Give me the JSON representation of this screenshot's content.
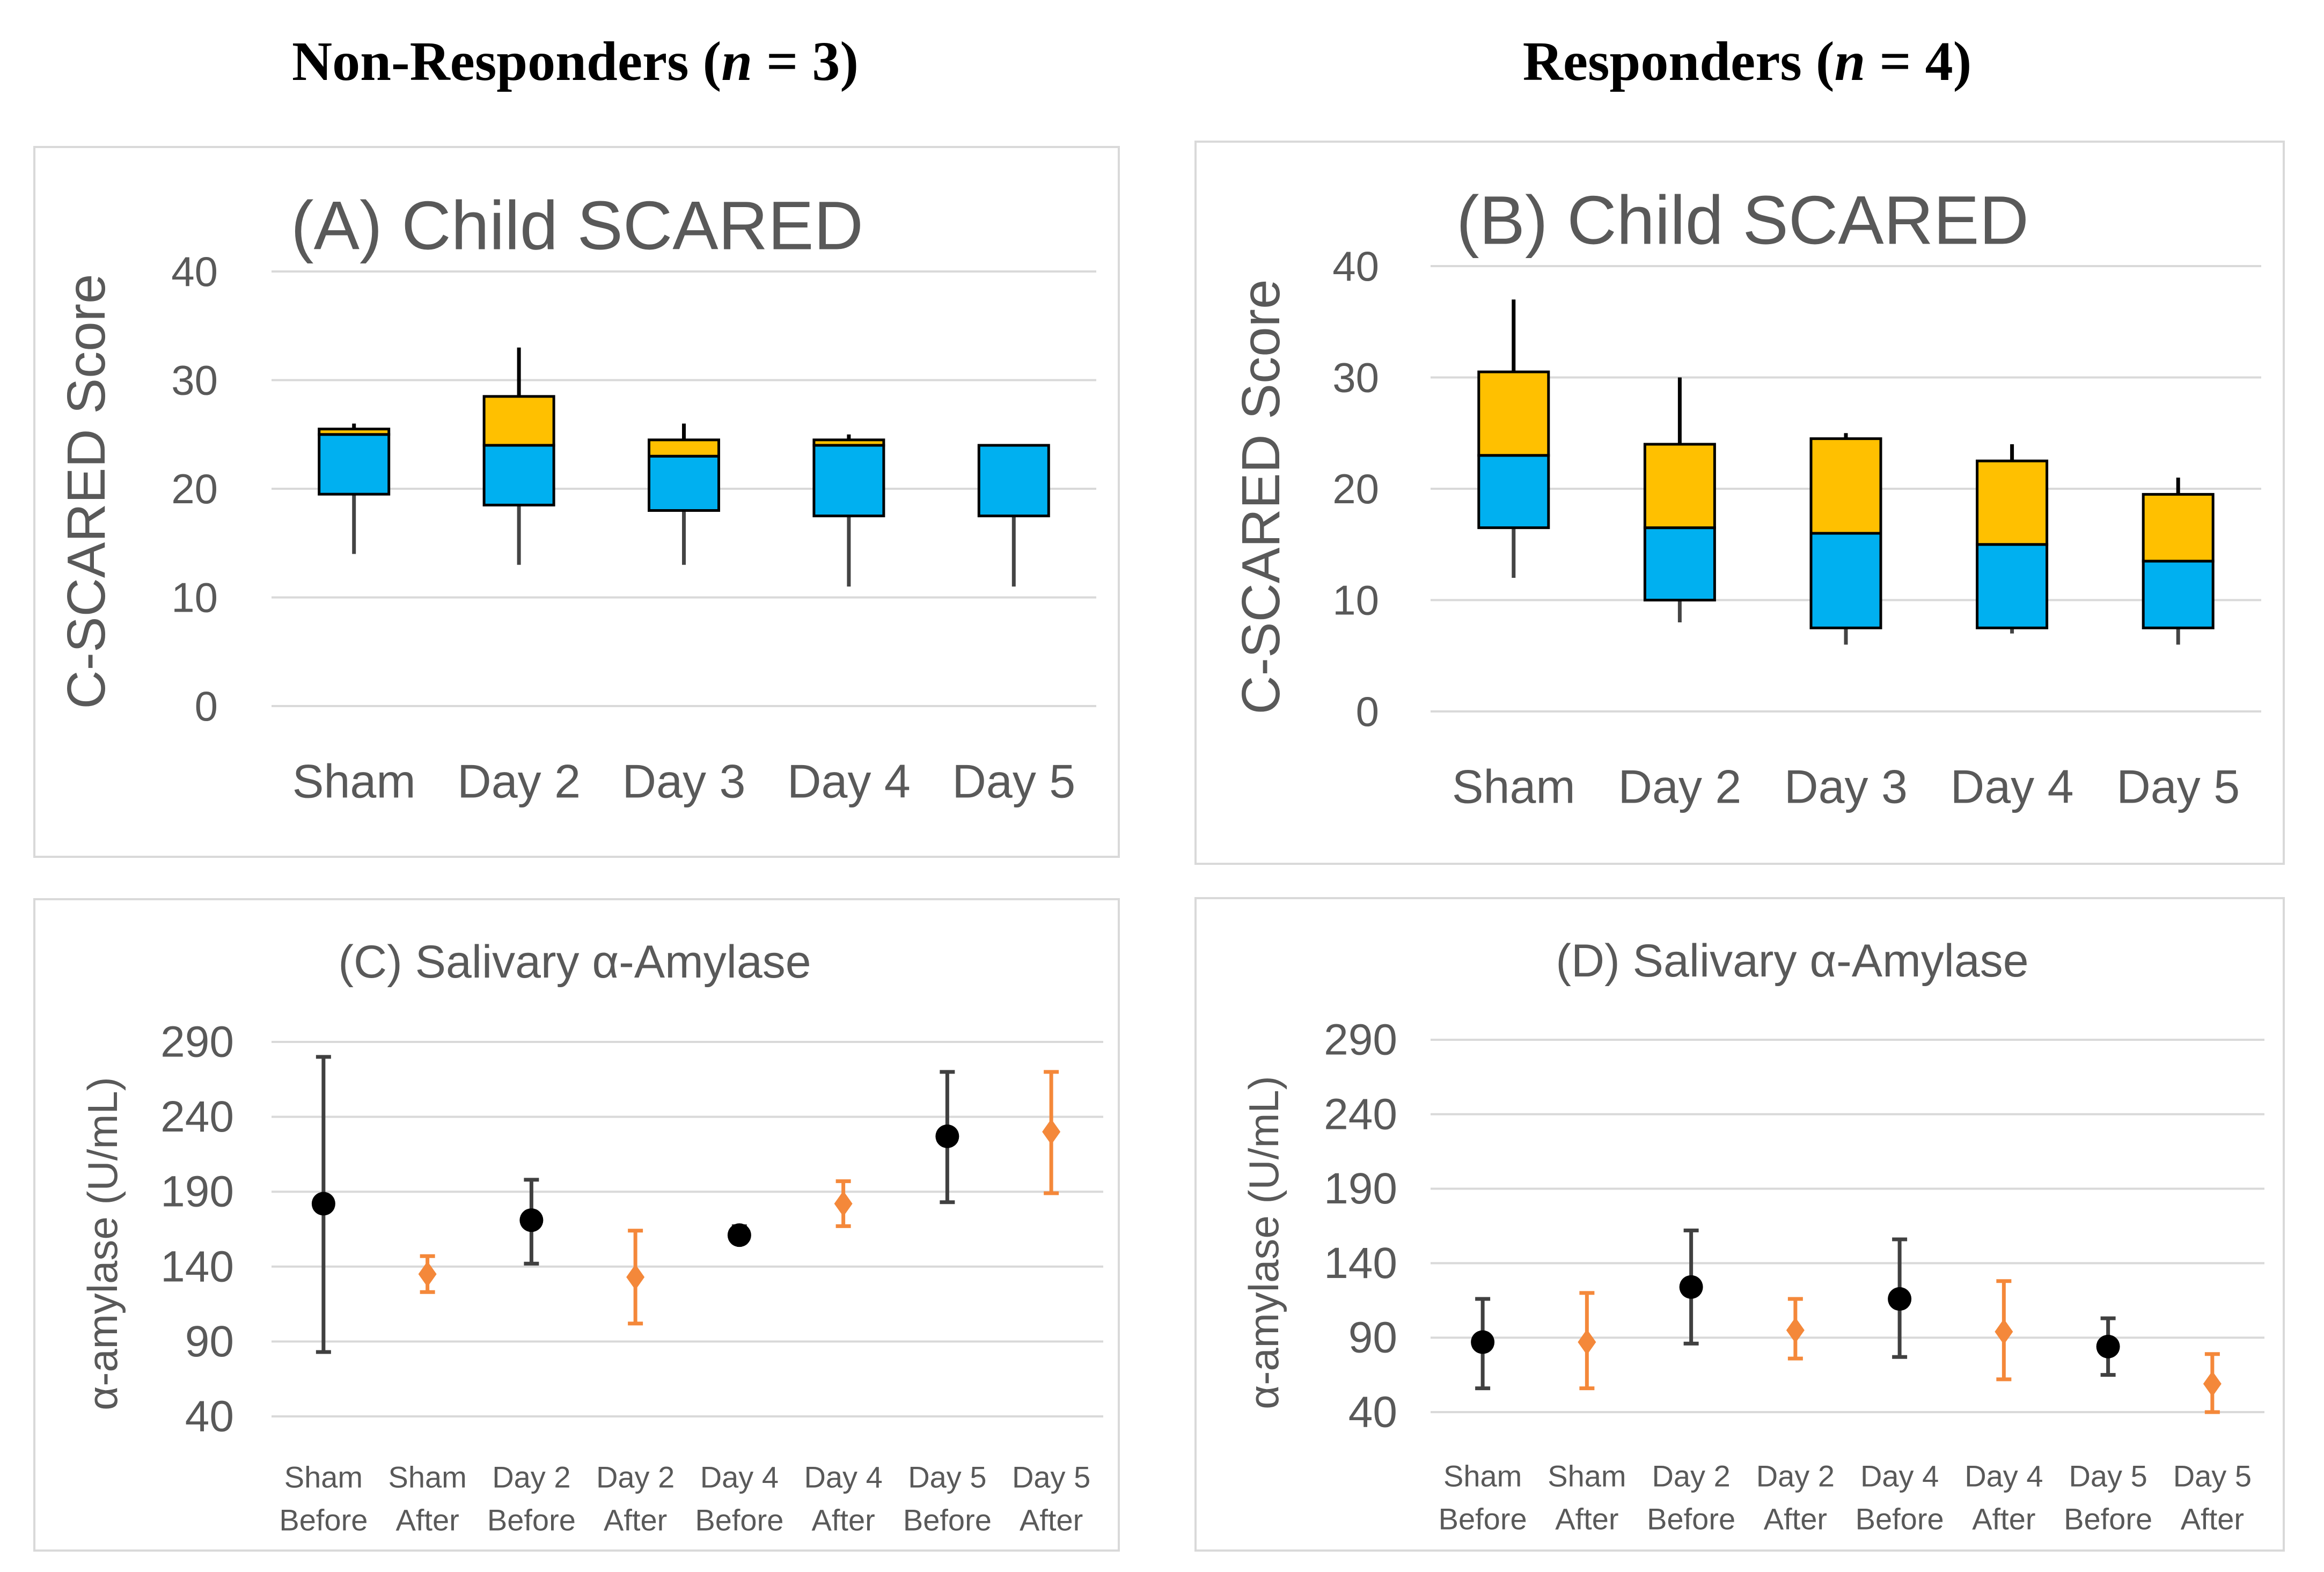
{
  "headings": {
    "left": {
      "text": "Non-Responders (",
      "n": "n",
      "rest": " = 3)"
    },
    "right": {
      "text": "Responders (",
      "n": "n",
      "rest": " = 4)"
    }
  },
  "colors": {
    "blue": "#00B0F0",
    "orange": "#FFC000",
    "black": "#000000",
    "orange_marker": "#F4883A",
    "grid": "#D9D9D9",
    "axis_text": "#595959"
  },
  "chart_data": [
    {
      "id": "A",
      "type": "box",
      "title": "(A) Child SCARED",
      "ylabel": "C-SCARED Score",
      "ylim": [
        0,
        40
      ],
      "yticks": [
        0,
        10,
        20,
        30,
        40
      ],
      "categories": [
        "Sham",
        "Day 2",
        "Day 3",
        "Day 4",
        "Day 5"
      ],
      "boxes": [
        {
          "min": 14,
          "q1": 19.5,
          "median": 25,
          "q3": 25.5,
          "max": 26
        },
        {
          "min": 13,
          "q1": 18.5,
          "median": 24,
          "q3": 28.5,
          "max": 33
        },
        {
          "min": 13,
          "q1": 18,
          "median": 23,
          "q3": 24.5,
          "max": 26
        },
        {
          "min": 11,
          "q1": 17.5,
          "median": 24,
          "q3": 24.5,
          "max": 25
        },
        {
          "min": 11,
          "q1": 17.5,
          "median": 24,
          "q3": 24,
          "max": 24
        }
      ]
    },
    {
      "id": "B",
      "type": "box",
      "title": "(B) Child SCARED",
      "ylabel": "C-SCARED Score",
      "ylim": [
        0,
        40
      ],
      "yticks": [
        0,
        10,
        20,
        30,
        40
      ],
      "categories": [
        "Sham",
        "Day 2",
        "Day 3",
        "Day 4",
        "Day 5"
      ],
      "boxes": [
        {
          "min": 12,
          "q1": 16.5,
          "median": 23,
          "q3": 30.5,
          "max": 37
        },
        {
          "min": 8,
          "q1": 10,
          "median": 16.5,
          "q3": 24,
          "max": 30
        },
        {
          "min": 6,
          "q1": 7.5,
          "median": 16,
          "q3": 24.5,
          "max": 25
        },
        {
          "min": 7,
          "q1": 7.5,
          "median": 15,
          "q3": 22.5,
          "max": 24
        },
        {
          "min": 6,
          "q1": 7.5,
          "median": 13.5,
          "q3": 19.5,
          "max": 21
        }
      ]
    },
    {
      "id": "C",
      "type": "scatter",
      "title": "(C) Salivary α-Amylase",
      "ylabel": "α-amylase (U/mL)",
      "ylim": [
        40,
        290
      ],
      "yticks": [
        40,
        90,
        140,
        190,
        240,
        290
      ],
      "categories": [
        [
          "Sham",
          "Before"
        ],
        [
          "Sham",
          "After"
        ],
        [
          "Day 2",
          "Before"
        ],
        [
          "Day 2",
          "After"
        ],
        [
          "Day 4",
          "Before"
        ],
        [
          "Day 4",
          "After"
        ],
        [
          "Day 5",
          "Before"
        ],
        [
          "Day 5",
          "After"
        ]
      ],
      "points": [
        {
          "value": 182,
          "low": 83,
          "high": 280,
          "kind": "before"
        },
        {
          "value": 135,
          "low": 123,
          "high": 147,
          "kind": "after"
        },
        {
          "value": 171,
          "low": 142,
          "high": 198,
          "kind": "before"
        },
        {
          "value": 133,
          "low": 102,
          "high": 164,
          "kind": "after"
        },
        {
          "value": 161,
          "low": 156,
          "high": 167,
          "kind": "before"
        },
        {
          "value": 182,
          "low": 167,
          "high": 197,
          "kind": "after"
        },
        {
          "value": 227,
          "low": 183,
          "high": 270,
          "kind": "before"
        },
        {
          "value": 230,
          "low": 189,
          "high": 270,
          "kind": "after"
        }
      ]
    },
    {
      "id": "D",
      "type": "scatter",
      "title": "(D) Salivary α-Amylase",
      "ylabel": "α-amylase (U/mL)",
      "ylim": [
        40,
        290
      ],
      "yticks": [
        40,
        90,
        140,
        190,
        240,
        290
      ],
      "categories": [
        [
          "Sham",
          "Before"
        ],
        [
          "Sham",
          "After"
        ],
        [
          "Day 2",
          "Before"
        ],
        [
          "Day 2",
          "After"
        ],
        [
          "Day 4",
          "Before"
        ],
        [
          "Day 4",
          "After"
        ],
        [
          "Day 5",
          "Before"
        ],
        [
          "Day 5",
          "After"
        ]
      ],
      "points": [
        {
          "value": 87,
          "low": 56,
          "high": 116,
          "kind": "before"
        },
        {
          "value": 87,
          "low": 56,
          "high": 120,
          "kind": "after"
        },
        {
          "value": 124,
          "low": 86,
          "high": 162,
          "kind": "before"
        },
        {
          "value": 95,
          "low": 76,
          "high": 116,
          "kind": "after"
        },
        {
          "value": 116,
          "low": 77,
          "high": 156,
          "kind": "before"
        },
        {
          "value": 94,
          "low": 62,
          "high": 128,
          "kind": "after"
        },
        {
          "value": 84,
          "low": 65,
          "high": 103,
          "kind": "before"
        },
        {
          "value": 59,
          "low": 40,
          "high": 79,
          "kind": "after"
        }
      ]
    }
  ]
}
